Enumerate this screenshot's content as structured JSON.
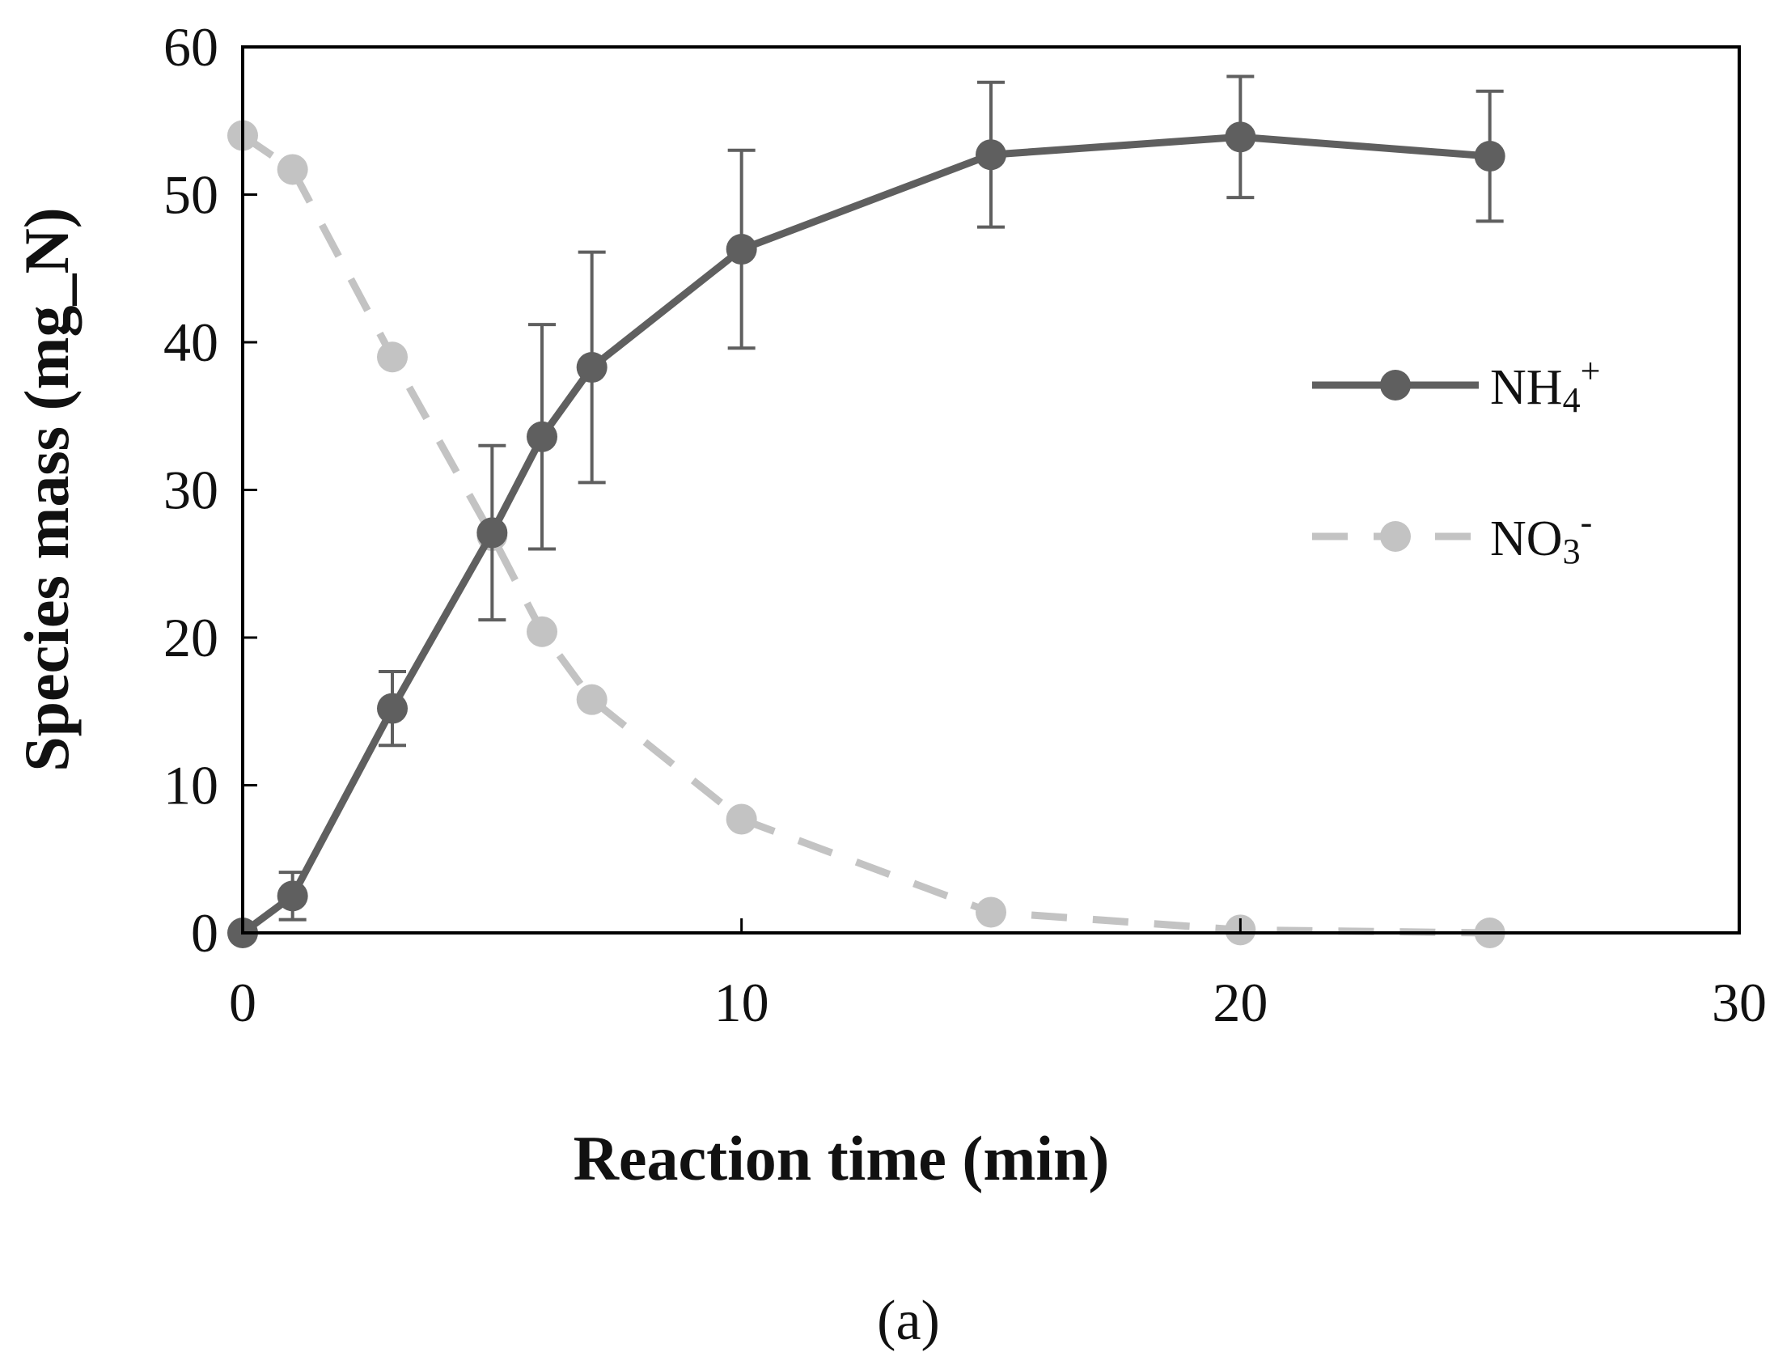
{
  "chart_data": {
    "type": "line",
    "title": "",
    "xlabel": "Reaction time  (min)",
    "ylabel": "Species mass  (mg_N)",
    "xlim": [
      0,
      30
    ],
    "ylim": [
      0,
      60
    ],
    "xticks": [
      0,
      10,
      20,
      30
    ],
    "yticks": [
      0,
      10,
      20,
      30,
      40,
      50,
      60
    ],
    "xtick_labels": [
      "0",
      "10",
      "20",
      "30"
    ],
    "ytick_labels": [
      "0",
      "10",
      "20",
      "30",
      "40",
      "50",
      "60"
    ],
    "grid": false,
    "legend_position": "right",
    "series": [
      {
        "name": "NH4+",
        "label_base": "NH",
        "label_sub": "4",
        "label_sup": "+",
        "color": "#5f5f5f",
        "line_style": "solid",
        "x": [
          0,
          1,
          3,
          5,
          6,
          7,
          10,
          15,
          20,
          25
        ],
        "values": [
          0,
          2.5,
          15.2,
          27.1,
          33.6,
          38.3,
          46.3,
          52.7,
          53.9,
          52.6
        ],
        "error": [
          0,
          1.6,
          2.5,
          5.9,
          7.6,
          7.8,
          6.7,
          4.9,
          4.1,
          4.4
        ]
      },
      {
        "name": "NO3-",
        "label_base": "NO",
        "label_sub": "3",
        "label_sup": "-",
        "color": "#c3c3c3",
        "line_style": "dashed",
        "x": [
          0,
          1,
          3,
          5,
          6,
          7,
          10,
          15,
          20,
          25
        ],
        "values": [
          54.0,
          51.7,
          39.0,
          26.9,
          20.4,
          15.8,
          7.7,
          1.4,
          0.2,
          0.0
        ]
      }
    ],
    "annotations": []
  },
  "caption": "(a)"
}
